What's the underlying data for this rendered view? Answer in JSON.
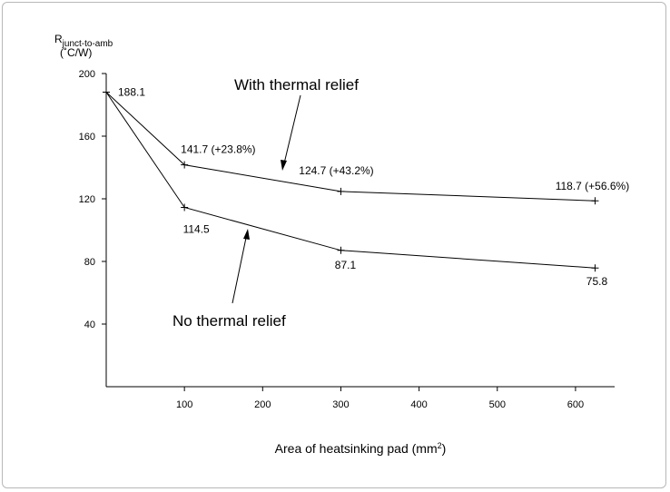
{
  "chart_data": {
    "type": "line",
    "ylabel_main": "R",
    "ylabel_sub": "junct-to-amb",
    "ylabel_units": "(˚C/W)",
    "xlabel_main": "Area of heatsinking pad (mm",
    "xlabel_sup": "2",
    "xlabel_end": ")",
    "xlim": [
      0,
      650
    ],
    "ylim": [
      0,
      200
    ],
    "xticks": [
      100,
      200,
      300,
      400,
      500,
      600
    ],
    "yticks": [
      40,
      80,
      120,
      160,
      200
    ],
    "series": [
      {
        "name": "With thermal relief",
        "x": [
          0,
          100,
          300,
          625
        ],
        "y": [
          188.1,
          141.7,
          124.7,
          118.7
        ],
        "labels": [
          "188.1",
          "141.7 (+23.8%)",
          "124.7 (+43.2%)",
          "118.7 (+56.6%)"
        ]
      },
      {
        "name": "No thermal relief",
        "x": [
          0,
          100,
          300,
          625
        ],
        "y": [
          188.1,
          114.5,
          87.1,
          75.8
        ],
        "labels": [
          "",
          "114.5",
          "87.1",
          "75.8"
        ]
      }
    ],
    "annotations": [
      "With thermal relief",
      "No thermal relief"
    ]
  }
}
